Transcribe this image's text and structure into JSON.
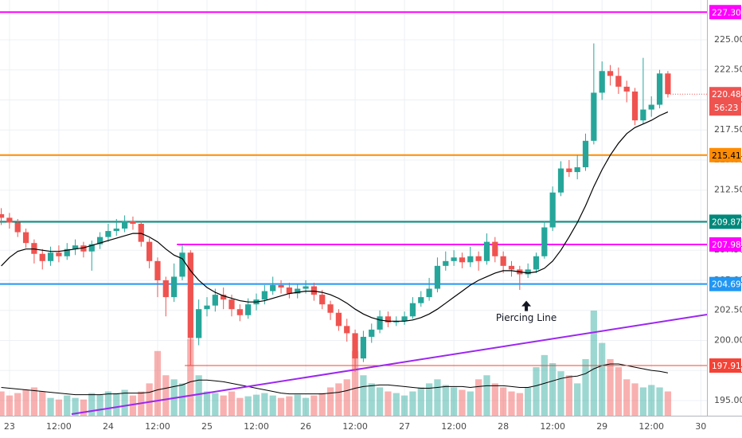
{
  "chart_data": {
    "type": "candlestick",
    "grid": true,
    "up_color": "#26a69a",
    "down_color": "#ef5350",
    "ma_color": "#000000",
    "xlim": [
      -2.3,
      169.5
    ],
    "ylim": [
      193.74,
      228.31
    ],
    "xticks": [
      {
        "value": 0,
        "label": "23"
      },
      {
        "value": 12,
        "label": "12:00"
      },
      {
        "value": 24,
        "label": "24"
      },
      {
        "value": 36,
        "label": "12:00"
      },
      {
        "value": 48,
        "label": "25"
      },
      {
        "value": 60,
        "label": "12:00"
      },
      {
        "value": 72,
        "label": "26"
      },
      {
        "value": 84,
        "label": "12:00"
      },
      {
        "value": 96,
        "label": "27"
      },
      {
        "value": 108,
        "label": "12:00"
      },
      {
        "value": 120,
        "label": "28"
      },
      {
        "value": 132,
        "label": "12:00"
      },
      {
        "value": 144,
        "label": "29"
      },
      {
        "value": 156,
        "label": "12:00"
      },
      {
        "value": 168,
        "label": "30"
      }
    ],
    "yticks": [
      {
        "value": 195,
        "label": "195.00"
      },
      {
        "value": 197.5,
        "label": "197.50"
      },
      {
        "value": 200,
        "label": "200.00"
      },
      {
        "value": 202.5,
        "label": "202.50"
      },
      {
        "value": 205,
        "label": "205.00"
      },
      {
        "value": 207.5,
        "label": "207.50"
      },
      {
        "value": 210,
        "label": "210.00"
      },
      {
        "value": 212.5,
        "label": "212.50"
      },
      {
        "value": 215,
        "label": "215.00"
      },
      {
        "value": 217.5,
        "label": "217.50"
      },
      {
        "value": 220,
        "label": "220.00"
      },
      {
        "value": 222.5,
        "label": "222.50"
      },
      {
        "value": 225,
        "label": "225.00"
      }
    ],
    "x": [
      -2,
      0,
      2,
      4,
      6,
      8,
      10,
      12,
      14,
      16,
      18,
      20,
      22,
      24,
      26,
      28,
      30,
      32,
      34,
      36,
      38,
      40,
      42,
      44,
      46,
      48,
      50,
      52,
      54,
      56,
      58,
      60,
      62,
      64,
      66,
      68,
      70,
      72,
      74,
      76,
      78,
      80,
      82,
      84,
      86,
      88,
      90,
      92,
      94,
      96,
      98,
      100,
      102,
      104,
      106,
      108,
      110,
      112,
      114,
      116,
      118,
      120,
      122,
      124,
      126,
      128,
      130,
      132,
      134,
      136,
      138,
      140,
      142,
      144,
      146,
      148,
      150,
      152,
      154,
      156,
      158,
      160
    ],
    "open": [
      210.5,
      210.2,
      209.8,
      209.0,
      208.1,
      207.2,
      206.6,
      207.3,
      207.0,
      207.6,
      207.9,
      207.4,
      208.0,
      208.6,
      209.1,
      209.3,
      209.9,
      209.7,
      208.2,
      206.6,
      205.0,
      203.6,
      205.3,
      207.3,
      200.2,
      202.6,
      202.9,
      203.8,
      203.4,
      202.6,
      202.1,
      203.0,
      203.4,
      204.1,
      204.6,
      204.4,
      203.9,
      204.3,
      204.5,
      203.8,
      203.0,
      202.3,
      201.2,
      200.6,
      198.5,
      200.3,
      200.9,
      202.0,
      201.5,
      201.6,
      202.0,
      203.1,
      203.6,
      204.3,
      206.2,
      206.6,
      206.9,
      206.5,
      207.0,
      206.6,
      208.2,
      207.0,
      206.2,
      205.9,
      205.5,
      205.9,
      207.0,
      209.4,
      212.3,
      214.3,
      214.0,
      214.4,
      216.6,
      220.6,
      222.4,
      222.0,
      221.1,
      220.7,
      218.3,
      219.2,
      219.6,
      222.2
    ],
    "high": [
      211.0,
      210.6,
      210.1,
      209.3,
      208.4,
      207.6,
      207.8,
      207.9,
      208.1,
      208.4,
      208.2,
      208.3,
      209.0,
      209.7,
      210.1,
      210.4,
      210.3,
      209.9,
      208.5,
      206.9,
      205.3,
      206.4,
      208.0,
      207.5,
      203.4,
      203.6,
      204.3,
      204.4,
      203.8,
      203.0,
      203.5,
      203.9,
      204.6,
      205.3,
      205.0,
      204.8,
      204.7,
      205.0,
      204.8,
      204.2,
      203.3,
      202.6,
      201.8,
      200.9,
      200.8,
      201.4,
      202.5,
      202.4,
      202.0,
      202.4,
      203.6,
      204.1,
      205.2,
      206.9,
      207.4,
      207.5,
      207.3,
      207.8,
      207.4,
      208.9,
      208.6,
      207.4,
      206.6,
      206.2,
      206.4,
      207.3,
      209.9,
      212.8,
      214.9,
      215.0,
      215.4,
      217.2,
      224.7,
      223.2,
      222.9,
      222.7,
      221.6,
      221.0,
      223.5,
      220.3,
      222.5,
      222.4
    ],
    "low": [
      209.6,
      209.3,
      208.6,
      207.7,
      206.4,
      205.9,
      206.2,
      206.5,
      206.7,
      207.1,
      206.9,
      205.8,
      207.6,
      208.2,
      208.7,
      209.0,
      209.2,
      207.8,
      206.0,
      203.6,
      202.0,
      203.2,
      205.0,
      197.9,
      199.6,
      202.0,
      202.4,
      202.6,
      202.0,
      201.6,
      201.8,
      202.5,
      203.0,
      203.8,
      203.9,
      203.5,
      203.5,
      203.9,
      203.3,
      202.6,
      201.7,
      200.8,
      199.9,
      197.4,
      198.2,
      199.8,
      200.6,
      201.1,
      201.2,
      201.3,
      201.8,
      202.8,
      203.3,
      204.0,
      205.8,
      206.2,
      206.0,
      206.1,
      205.8,
      206.3,
      206.5,
      205.6,
      205.3,
      204.2,
      205.2,
      205.6,
      206.8,
      209.1,
      212.0,
      213.6,
      213.4,
      214.1,
      216.3,
      220.0,
      221.2,
      220.5,
      219.8,
      217.9,
      218.0,
      218.6,
      219.3,
      220.2
    ],
    "close": [
      210.2,
      209.8,
      209.0,
      208.1,
      207.2,
      206.6,
      207.3,
      207.0,
      207.6,
      207.9,
      207.4,
      208.0,
      208.6,
      209.1,
      209.3,
      209.9,
      209.7,
      208.2,
      206.6,
      205.0,
      203.6,
      205.3,
      207.3,
      200.2,
      202.6,
      202.9,
      203.8,
      203.4,
      202.6,
      202.1,
      203.0,
      203.4,
      204.1,
      204.6,
      204.4,
      203.9,
      204.3,
      204.5,
      203.8,
      203.0,
      202.3,
      201.2,
      200.6,
      198.5,
      200.3,
      200.9,
      202.0,
      201.5,
      201.6,
      202.0,
      203.1,
      203.6,
      204.3,
      206.2,
      206.6,
      206.9,
      206.5,
      207.0,
      206.6,
      208.2,
      207.0,
      206.2,
      205.9,
      205.5,
      205.9,
      207.0,
      209.4,
      212.3,
      214.3,
      214.0,
      214.4,
      216.6,
      220.6,
      222.4,
      222.0,
      221.1,
      220.7,
      218.3,
      219.2,
      219.6,
      222.2,
      220.48
    ],
    "ma": [
      206.2,
      206.9,
      207.4,
      207.6,
      207.6,
      207.5,
      207.4,
      207.4,
      207.5,
      207.6,
      207.7,
      207.9,
      208.1,
      208.3,
      208.5,
      208.7,
      208.9,
      208.9,
      208.6,
      208.2,
      207.6,
      207.1,
      206.8,
      205.8,
      205.0,
      204.4,
      204.0,
      203.7,
      203.5,
      203.3,
      203.2,
      203.2,
      203.3,
      203.5,
      203.7,
      203.9,
      204.0,
      204.1,
      204.1,
      204.0,
      203.8,
      203.5,
      203.1,
      202.6,
      202.2,
      201.9,
      201.7,
      201.6,
      201.6,
      201.6,
      201.7,
      201.9,
      202.2,
      202.6,
      203.1,
      203.6,
      204.1,
      204.6,
      205.0,
      205.3,
      205.6,
      205.8,
      205.8,
      205.7,
      205.6,
      205.7,
      206.0,
      206.6,
      207.5,
      208.6,
      209.8,
      211.2,
      212.8,
      214.2,
      215.4,
      216.4,
      217.2,
      217.7,
      218.0,
      218.3,
      218.7,
      219.0
    ],
    "volume": [
      30,
      25,
      28,
      32,
      35,
      30,
      22,
      20,
      25,
      22,
      20,
      28,
      26,
      30,
      28,
      32,
      25,
      30,
      40,
      80,
      50,
      45,
      40,
      95,
      50,
      30,
      28,
      25,
      30,
      22,
      24,
      26,
      28,
      25,
      22,
      24,
      26,
      22,
      25,
      28,
      35,
      40,
      45,
      80,
      50,
      40,
      35,
      30,
      28,
      25,
      30,
      35,
      40,
      45,
      38,
      35,
      32,
      30,
      45,
      50,
      40,
      35,
      30,
      28,
      35,
      60,
      75,
      65,
      55,
      50,
      40,
      70,
      130,
      90,
      70,
      60,
      45,
      40,
      35,
      38,
      35,
      30
    ],
    "volume_ma": [
      35,
      34,
      33,
      32,
      31,
      30,
      29,
      28,
      27,
      26,
      26,
      26,
      26,
      27,
      27,
      28,
      28,
      28,
      29,
      32,
      34,
      36,
      38,
      42,
      44,
      44,
      43,
      42,
      40,
      38,
      36,
      34,
      32,
      30,
      28,
      27,
      27,
      27,
      27,
      27,
      28,
      29,
      31,
      34,
      36,
      37,
      38,
      38,
      37,
      36,
      35,
      34,
      34,
      35,
      36,
      36,
      36,
      35,
      36,
      37,
      37,
      37,
      36,
      35,
      35,
      37,
      40,
      43,
      46,
      48,
      49,
      52,
      58,
      62,
      64,
      64,
      62,
      60,
      58,
      56,
      55,
      53
    ],
    "price_lines": [
      {
        "value": 227.3,
        "label": "227.30",
        "color": "#ff00ff",
        "start": -2.3
      },
      {
        "value": 215.41,
        "label": "215.41",
        "color": "#ff8c00",
        "start": -2.3
      },
      {
        "value": 209.87,
        "label": "209.87",
        "color": "#00897b",
        "start": -2.3
      },
      {
        "value": 207.98,
        "label": "207.98",
        "color": "#ff00ff",
        "start": 40.7
      },
      {
        "value": 204.69,
        "label": "204.69",
        "color": "#2196f3",
        "start": -2.3
      },
      {
        "value": 197.91,
        "label": "197.91",
        "color": "#f44336",
        "start": 42.6
      }
    ],
    "trendline": {
      "x": [
        15.1,
        169.5
      ],
      "y": [
        193.87,
        202.15
      ],
      "color": "#9c27f0"
    },
    "annotation": {
      "text": "Piercing Line",
      "x": 125.6,
      "y": 203.3
    },
    "countdown": "56:23"
  }
}
